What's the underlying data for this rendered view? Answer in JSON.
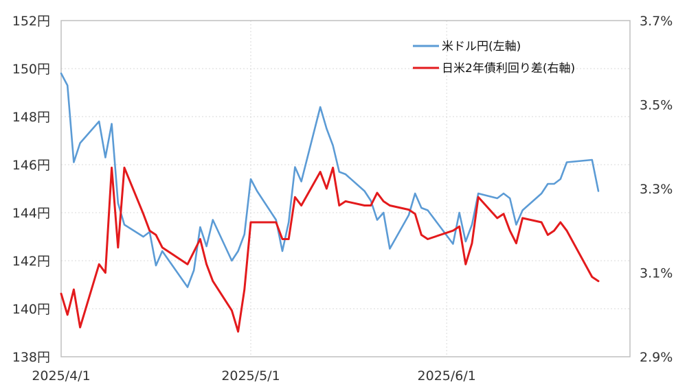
{
  "chart_data": {
    "type": "line",
    "title": "",
    "xlabel": "",
    "ylabel": "",
    "grid": true,
    "legend_position": "top-right",
    "x_ticks": [
      "2025/4/1",
      "2025/5/1",
      "2025/6/1"
    ],
    "xlim": [
      "2025-04-01",
      "2025-06-30"
    ],
    "y_left": {
      "ticks": [
        "152円",
        "150円",
        "148円",
        "146円",
        "144円",
        "142円",
        "140円",
        "138円"
      ],
      "ylim": [
        138,
        152
      ]
    },
    "y_right": {
      "ticks": [
        "3.7%",
        "3.5%",
        "3.3%",
        "3.1%",
        "2.9%"
      ],
      "ylim": [
        2.9,
        3.7
      ]
    },
    "series": [
      {
        "name": "米ドル円(左軸)",
        "axis": "left",
        "color": "#5b9bd5",
        "points": [
          [
            "2025-04-01",
            149.8
          ],
          [
            "2025-04-02",
            149.3
          ],
          [
            "2025-04-03",
            146.1
          ],
          [
            "2025-04-04",
            146.9
          ],
          [
            "2025-04-07",
            147.8
          ],
          [
            "2025-04-08",
            146.3
          ],
          [
            "2025-04-09",
            147.7
          ],
          [
            "2025-04-10",
            144.4
          ],
          [
            "2025-04-11",
            143.5
          ],
          [
            "2025-04-14",
            143.0
          ],
          [
            "2025-04-15",
            143.2
          ],
          [
            "2025-04-16",
            141.8
          ],
          [
            "2025-04-17",
            142.4
          ],
          [
            "2025-04-21",
            140.9
          ],
          [
            "2025-04-22",
            141.6
          ],
          [
            "2025-04-23",
            143.4
          ],
          [
            "2025-04-24",
            142.6
          ],
          [
            "2025-04-25",
            143.7
          ],
          [
            "2025-04-28",
            142.0
          ],
          [
            "2025-04-29",
            142.4
          ],
          [
            "2025-04-30",
            143.1
          ],
          [
            "2025-05-01",
            145.4
          ],
          [
            "2025-05-02",
            144.9
          ],
          [
            "2025-05-05",
            143.7
          ],
          [
            "2025-05-06",
            142.4
          ],
          [
            "2025-05-07",
            143.6
          ],
          [
            "2025-05-08",
            145.9
          ],
          [
            "2025-05-09",
            145.3
          ],
          [
            "2025-05-12",
            148.4
          ],
          [
            "2025-05-13",
            147.5
          ],
          [
            "2025-05-14",
            146.8
          ],
          [
            "2025-05-15",
            145.7
          ],
          [
            "2025-05-16",
            145.6
          ],
          [
            "2025-05-19",
            144.9
          ],
          [
            "2025-05-20",
            144.5
          ],
          [
            "2025-05-21",
            143.7
          ],
          [
            "2025-05-22",
            144.0
          ],
          [
            "2025-05-23",
            142.5
          ],
          [
            "2025-05-26",
            143.9
          ],
          [
            "2025-05-27",
            144.8
          ],
          [
            "2025-05-28",
            144.2
          ],
          [
            "2025-05-29",
            144.1
          ],
          [
            "2025-06-02",
            142.7
          ],
          [
            "2025-06-03",
            144.0
          ],
          [
            "2025-06-04",
            142.8
          ],
          [
            "2025-06-05",
            143.5
          ],
          [
            "2025-06-06",
            144.8
          ],
          [
            "2025-06-09",
            144.6
          ],
          [
            "2025-06-10",
            144.8
          ],
          [
            "2025-06-11",
            144.6
          ],
          [
            "2025-06-12",
            143.5
          ],
          [
            "2025-06-13",
            144.1
          ],
          [
            "2025-06-16",
            144.8
          ],
          [
            "2025-06-17",
            145.2
          ],
          [
            "2025-06-18",
            145.2
          ],
          [
            "2025-06-19",
            145.4
          ],
          [
            "2025-06-20",
            146.1
          ],
          [
            "2025-06-24",
            146.2
          ],
          [
            "2025-06-25",
            144.9
          ]
        ]
      },
      {
        "name": "日米2年債利回り差(右軸)",
        "axis": "right",
        "color": "#e31a1c",
        "points": [
          [
            "2025-04-01",
            3.05
          ],
          [
            "2025-04-02",
            3.0
          ],
          [
            "2025-04-03",
            3.06
          ],
          [
            "2025-04-04",
            2.97
          ],
          [
            "2025-04-07",
            3.12
          ],
          [
            "2025-04-08",
            3.1
          ],
          [
            "2025-04-09",
            3.35
          ],
          [
            "2025-04-10",
            3.16
          ],
          [
            "2025-04-11",
            3.35
          ],
          [
            "2025-04-14",
            3.24
          ],
          [
            "2025-04-15",
            3.2
          ],
          [
            "2025-04-16",
            3.19
          ],
          [
            "2025-04-17",
            3.16
          ],
          [
            "2025-04-21",
            3.12
          ],
          [
            "2025-04-22",
            3.15
          ],
          [
            "2025-04-23",
            3.18
          ],
          [
            "2025-04-24",
            3.12
          ],
          [
            "2025-04-25",
            3.08
          ],
          [
            "2025-04-28",
            3.01
          ],
          [
            "2025-04-29",
            2.96
          ],
          [
            "2025-04-30",
            3.06
          ],
          [
            "2025-05-01",
            3.22
          ],
          [
            "2025-05-02",
            3.22
          ],
          [
            "2025-05-05",
            3.22
          ],
          [
            "2025-05-06",
            3.18
          ],
          [
            "2025-05-07",
            3.18
          ],
          [
            "2025-05-08",
            3.28
          ],
          [
            "2025-05-09",
            3.26
          ],
          [
            "2025-05-12",
            3.34
          ],
          [
            "2025-05-13",
            3.3
          ],
          [
            "2025-05-14",
            3.35
          ],
          [
            "2025-05-15",
            3.26
          ],
          [
            "2025-05-16",
            3.27
          ],
          [
            "2025-05-19",
            3.26
          ],
          [
            "2025-05-20",
            3.26
          ],
          [
            "2025-05-21",
            3.29
          ],
          [
            "2025-05-22",
            3.27
          ],
          [
            "2025-05-23",
            3.26
          ],
          [
            "2025-05-26",
            3.25
          ],
          [
            "2025-05-27",
            3.24
          ],
          [
            "2025-05-28",
            3.19
          ],
          [
            "2025-05-29",
            3.18
          ],
          [
            "2025-06-02",
            3.2
          ],
          [
            "2025-06-03",
            3.21
          ],
          [
            "2025-06-04",
            3.12
          ],
          [
            "2025-06-05",
            3.17
          ],
          [
            "2025-06-06",
            3.28
          ],
          [
            "2025-06-09",
            3.23
          ],
          [
            "2025-06-10",
            3.24
          ],
          [
            "2025-06-11",
            3.2
          ],
          [
            "2025-06-12",
            3.17
          ],
          [
            "2025-06-13",
            3.23
          ],
          [
            "2025-06-16",
            3.22
          ],
          [
            "2025-06-17",
            3.19
          ],
          [
            "2025-06-18",
            3.2
          ],
          [
            "2025-06-19",
            3.22
          ],
          [
            "2025-06-20",
            3.2
          ],
          [
            "2025-06-24",
            3.09
          ],
          [
            "2025-06-25",
            3.08
          ]
        ]
      }
    ]
  }
}
